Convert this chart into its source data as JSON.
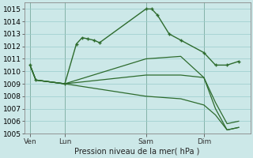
{
  "background_color": "#cce8e8",
  "grid_color": "#99cccc",
  "line_color": "#2d6b2d",
  "marker_color": "#2d6b2d",
  "xlabel": "Pression niveau de la mer( hPa )",
  "ylim": [
    1005,
    1015.5
  ],
  "yticks": [
    1005,
    1006,
    1007,
    1008,
    1009,
    1010,
    1011,
    1012,
    1013,
    1014,
    1015
  ],
  "xtick_labels": [
    "Ven",
    "Lun",
    "Sam",
    "Dim"
  ],
  "xtick_positions": [
    0,
    3,
    10,
    15
  ],
  "xlim": [
    -0.5,
    19
  ],
  "series": [
    {
      "x": [
        0,
        0.5,
        3,
        4,
        4.5,
        5,
        5.5,
        6,
        10,
        10.5,
        11,
        12,
        13,
        15,
        16,
        17,
        18
      ],
      "y": [
        1010.5,
        1009.3,
        1009.0,
        1012.2,
        1012.7,
        1012.6,
        1012.5,
        1012.3,
        1015.0,
        1015.0,
        1014.5,
        1013.0,
        1012.5,
        1011.5,
        1010.5,
        1010.5,
        1010.8
      ],
      "marker": true
    },
    {
      "x": [
        0,
        0.5,
        3,
        10,
        13,
        15,
        16,
        17,
        18
      ],
      "y": [
        1010.5,
        1009.3,
        1009.0,
        1011.0,
        1011.2,
        1009.5,
        1007.0,
        1005.3,
        1005.5
      ],
      "marker": false
    },
    {
      "x": [
        0,
        0.5,
        3,
        10,
        13,
        15,
        16,
        17,
        18
      ],
      "y": [
        1010.5,
        1009.3,
        1009.0,
        1009.7,
        1009.7,
        1009.5,
        1007.5,
        1005.8,
        1006.0
      ],
      "marker": false
    },
    {
      "x": [
        0,
        0.5,
        3,
        10,
        13,
        15,
        16,
        17,
        18
      ],
      "y": [
        1010.5,
        1009.3,
        1009.0,
        1008.0,
        1007.8,
        1007.3,
        1006.5,
        1005.3,
        1005.5
      ],
      "marker": false
    }
  ]
}
